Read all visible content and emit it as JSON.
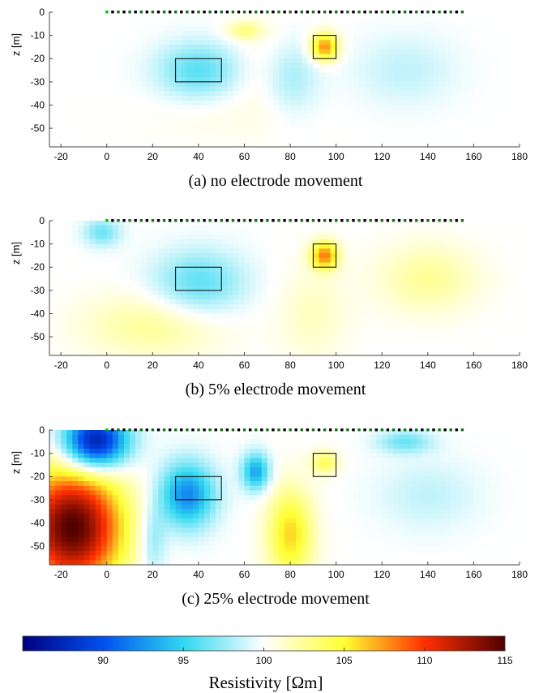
{
  "chart_data": {
    "type": "heatmap",
    "panels": [
      {
        "caption": "(a) no electrode movement",
        "ylabel": "z [m]",
        "xlim": [
          -25,
          180
        ],
        "ylim": [
          -58,
          0
        ],
        "xticks": [
          "-20",
          "0",
          "20",
          "40",
          "60",
          "80",
          "100",
          "120",
          "140",
          "160",
          "180"
        ],
        "yticks": [
          "0",
          "-10",
          "-20",
          "-30",
          "-40",
          "-50"
        ],
        "anomalies": [
          {
            "x": 40,
            "z": -25,
            "rx": 18,
            "rz": 12,
            "value": 96
          },
          {
            "x": 70,
            "z": -25,
            "rx": 15,
            "rz": 20,
            "value": 101
          },
          {
            "x": 80,
            "z": -28,
            "rx": 12,
            "rz": 16,
            "value": 97.5
          },
          {
            "x": 95,
            "z": -15,
            "rx": 6,
            "rz": 6,
            "value": 108
          },
          {
            "x": 130,
            "z": -25,
            "rx": 22,
            "rz": 15,
            "value": 98.5
          },
          {
            "x": 60,
            "z": -8,
            "rx": 8,
            "rz": 4,
            "value": 103
          },
          {
            "x": 50,
            "z": -45,
            "rx": 35,
            "rz": 12,
            "value": 100.5
          }
        ],
        "rectangles": [
          {
            "x0": 30,
            "x1": 50,
            "z0": -20,
            "z1": -30
          },
          {
            "x0": 90,
            "x1": 100,
            "z0": -10,
            "z1": -20
          }
        ],
        "electrodes": {
          "x_start": 0,
          "x_end": 157,
          "spacing": 2.5
        }
      },
      {
        "caption": "(b) 5% electrode movement",
        "ylabel": "z [m]",
        "xlim": [
          -25,
          180
        ],
        "ylim": [
          -58,
          0
        ],
        "xticks": [
          "-20",
          "0",
          "20",
          "40",
          "60",
          "80",
          "100",
          "120",
          "140",
          "160",
          "180"
        ],
        "yticks": [
          "0",
          "-10",
          "-20",
          "-30",
          "-40",
          "-50"
        ],
        "anomalies": [
          {
            "x": 40,
            "z": -27,
            "rx": 20,
            "rz": 14,
            "value": 96
          },
          {
            "x": -2,
            "z": -5,
            "rx": 8,
            "rz": 6,
            "value": 96.5
          },
          {
            "x": 20,
            "z": -45,
            "rx": 30,
            "rz": 14,
            "value": 102.5
          },
          {
            "x": 95,
            "z": -15,
            "rx": 6,
            "rz": 6,
            "value": 108
          },
          {
            "x": 140,
            "z": -25,
            "rx": 22,
            "rz": 15,
            "value": 102.5
          },
          {
            "x": 90,
            "z": -40,
            "rx": 15,
            "rz": 20,
            "value": 101.5
          }
        ],
        "rectangles": [
          {
            "x0": 30,
            "x1": 50,
            "z0": -20,
            "z1": -30
          },
          {
            "x0": 90,
            "x1": 100,
            "z0": -10,
            "z1": -20
          }
        ],
        "electrodes": {
          "x_start": 0,
          "x_end": 157,
          "spacing": 2.5
        }
      },
      {
        "caption": "(c) 25% electrode movement",
        "ylabel": "z [m]",
        "xlim": [
          -25,
          180
        ],
        "ylim": [
          -58,
          0
        ],
        "xticks": [
          "-20",
          "0",
          "20",
          "40",
          "60",
          "80",
          "100",
          "120",
          "140",
          "160",
          "180"
        ],
        "yticks": [
          "0",
          "-10",
          "-20",
          "-30",
          "-40",
          "-50"
        ],
        "anomalies": [
          {
            "x": -5,
            "z": -5,
            "rx": 14,
            "rz": 12,
            "value": 86
          },
          {
            "x": -15,
            "z": -42,
            "rx": 22,
            "rz": 26,
            "value": 115
          },
          {
            "x": 35,
            "z": -28,
            "rx": 12,
            "rz": 14,
            "value": 92
          },
          {
            "x": 65,
            "z": -18,
            "rx": 6,
            "rz": 8,
            "value": 93
          },
          {
            "x": 80,
            "z": -45,
            "rx": 10,
            "rz": 20,
            "value": 106
          },
          {
            "x": 95,
            "z": -14,
            "rx": 6,
            "rz": 5,
            "value": 104
          },
          {
            "x": 20,
            "z": -48,
            "rx": 6,
            "rz": 15,
            "value": 97
          },
          {
            "x": 140,
            "z": -28,
            "rx": 22,
            "rz": 15,
            "value": 98.5
          },
          {
            "x": 130,
            "z": -5,
            "rx": 12,
            "rz": 5,
            "value": 96.5
          }
        ],
        "rectangles": [
          {
            "x0": 30,
            "x1": 50,
            "z0": -20,
            "z1": -30
          },
          {
            "x0": 90,
            "x1": 100,
            "z0": -10,
            "z1": -20
          }
        ],
        "electrodes": {
          "x_start": 0,
          "x_end": 157,
          "spacing": 2.5
        }
      }
    ],
    "colorbar": {
      "label": "Resistivity [Ωm]",
      "range": [
        85,
        115
      ],
      "ticks": [
        90,
        95,
        100,
        105,
        110,
        115
      ],
      "stops": [
        "#000080",
        "#0050f0",
        "#30d8f0",
        "#ffffff",
        "#ffff30",
        "#ff3000",
        "#500000"
      ]
    }
  }
}
